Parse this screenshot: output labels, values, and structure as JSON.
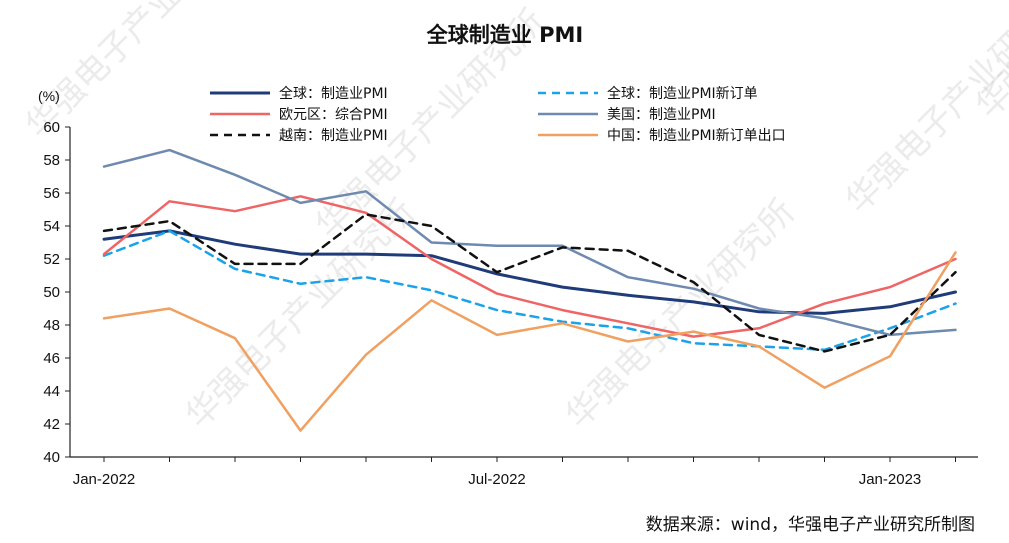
{
  "chart_data": {
    "type": "line",
    "title": "全球制造业 PMI",
    "ylabel": "(%)",
    "ylim": [
      40,
      60
    ],
    "yticks": [
      "60",
      "58",
      "56",
      "54",
      "52",
      "50",
      "48",
      "46",
      "44",
      "42",
      "40"
    ],
    "x_tick_labels": [
      "Jan-2022",
      "Jul-2022",
      "Jan-2023"
    ],
    "x_tick_index": [
      0,
      6,
      12
    ],
    "months": [
      "2022-01",
      "2022-02",
      "2022-03",
      "2022-04",
      "2022-05",
      "2022-06",
      "2022-07",
      "2022-08",
      "2022-09",
      "2022-10",
      "2022-11",
      "2022-12",
      "2023-01",
      "2023-02"
    ],
    "series": [
      {
        "name": "全球：制造业PMI",
        "color": "#1f3c78",
        "dash": "",
        "width": 3,
        "values": [
          53.2,
          53.7,
          52.9,
          52.3,
          52.3,
          52.2,
          51.1,
          50.3,
          49.8,
          49.4,
          48.8,
          48.7,
          49.1,
          50.0
        ]
      },
      {
        "name": "全球：制造业PMI新订单",
        "color": "#1aa3e8",
        "dash": "8,6",
        "width": 2.5,
        "values": [
          52.2,
          53.7,
          51.4,
          50.5,
          50.9,
          50.1,
          48.9,
          48.2,
          47.8,
          46.9,
          46.7,
          46.5,
          47.8,
          49.3
        ]
      },
      {
        "name": "欧元区：综合PMI",
        "color": "#ef6464",
        "dash": "",
        "width": 2.5,
        "values": [
          52.3,
          55.5,
          54.9,
          55.8,
          54.8,
          52.0,
          49.9,
          48.9,
          48.1,
          47.3,
          47.8,
          49.3,
          50.3,
          52.0
        ]
      },
      {
        "name": "美国：制造业PMI",
        "color": "#6e8ab0",
        "dash": "",
        "width": 2.5,
        "values": [
          57.6,
          58.6,
          57.1,
          55.4,
          56.1,
          53.0,
          52.8,
          52.8,
          50.9,
          50.2,
          49.0,
          48.4,
          47.4,
          47.7
        ]
      },
      {
        "name": "越南：制造业PMI",
        "color": "#111111",
        "dash": "8,6",
        "width": 2.5,
        "values": [
          53.7,
          54.3,
          51.7,
          51.7,
          54.7,
          54.0,
          51.2,
          52.7,
          52.5,
          50.6,
          47.4,
          46.4,
          47.4,
          51.2
        ]
      },
      {
        "name": "中国：制造业PMI新订单出口",
        "color": "#f0a060",
        "dash": "",
        "width": 2.5,
        "values": [
          48.4,
          49.0,
          47.2,
          41.6,
          46.2,
          49.5,
          47.4,
          48.1,
          47.0,
          47.6,
          46.7,
          44.2,
          46.1,
          52.4
        ]
      }
    ],
    "source_note": "数据来源：wind，华强电子产业研究所制图",
    "watermark_text": "华强电子产业研究所"
  }
}
